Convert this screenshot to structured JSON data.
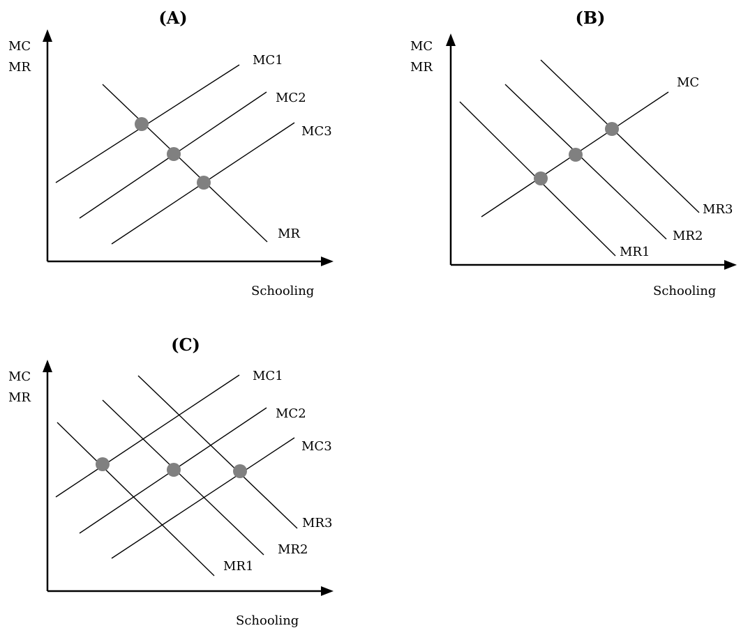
{
  "panels": {
    "a": {
      "title": "(A)",
      "y_axis_label_line1": "MC",
      "y_axis_label_line2": "MR",
      "x_axis_label": "Schooling",
      "mc_labels": [
        "MC1",
        "MC2",
        "MC3"
      ],
      "mr_labels": [
        "MR"
      ],
      "equilibrium_points": 3
    },
    "b": {
      "title": "(B)",
      "y_axis_label_line1": "MC",
      "y_axis_label_line2": "MR",
      "x_axis_label": "Schooling",
      "mc_labels": [
        "MC"
      ],
      "mr_labels": [
        "MR1",
        "MR2",
        "MR3"
      ],
      "equilibrium_points": 3
    },
    "c": {
      "title": "(C)",
      "y_axis_label_line1": "MC",
      "y_axis_label_line2": "MR",
      "x_axis_label": "Schooling",
      "mc_labels": [
        "MC1",
        "MC2",
        "MC3"
      ],
      "mr_labels": [
        "MR1",
        "MR2",
        "MR3"
      ],
      "equilibrium_points": 3
    }
  },
  "colors": {
    "line": "#000000",
    "dot": "#808080",
    "background": "#ffffff"
  }
}
